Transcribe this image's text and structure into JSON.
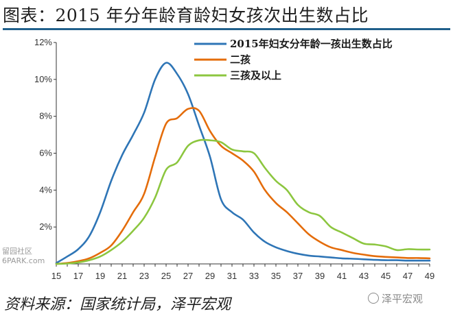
{
  "title": "图表：2015 年分年龄育龄妇女孩次出生数占比",
  "source": "资料来源：国家统计局，泽平宏观",
  "watermark_left": [
    "留园社区",
    "6PARK.com"
  ],
  "watermark_right": "泽平宏观",
  "chart_data": {
    "type": "line",
    "x": [
      15,
      16,
      17,
      18,
      19,
      20,
      21,
      22,
      23,
      24,
      25,
      26,
      27,
      28,
      29,
      30,
      31,
      32,
      33,
      34,
      35,
      36,
      37,
      38,
      39,
      40,
      41,
      42,
      43,
      44,
      45,
      46,
      47,
      48,
      49
    ],
    "x_tick_labels": [
      "15",
      "17",
      "19",
      "21",
      "23",
      "25",
      "27",
      "29",
      "31",
      "33",
      "35",
      "37",
      "39",
      "41",
      "43",
      "45",
      "47",
      "49"
    ],
    "ylim": [
      0,
      12
    ],
    "y_ticks": [
      2,
      4,
      6,
      8,
      10,
      12
    ],
    "y_tick_labels": [
      "2%",
      "4%",
      "6%",
      "8%",
      "10%",
      "12%"
    ],
    "legend_position": "top-right",
    "grid": false,
    "series": [
      {
        "name": "2015年妇女分年龄一孩出生数占比",
        "color": "#2e75b6",
        "values": [
          0.05,
          0.4,
          0.8,
          1.5,
          2.8,
          4.5,
          5.9,
          7.0,
          8.2,
          10.0,
          10.9,
          10.3,
          9.2,
          7.5,
          5.8,
          3.5,
          2.8,
          2.4,
          1.7,
          1.2,
          0.9,
          0.7,
          0.55,
          0.45,
          0.4,
          0.35,
          0.3,
          0.28,
          0.25,
          0.22,
          0.2,
          0.2,
          0.18,
          0.18,
          0.18
        ]
      },
      {
        "name": "二孩",
        "color": "#e46c0a",
        "values": [
          0.0,
          0.05,
          0.15,
          0.3,
          0.6,
          1.0,
          1.8,
          2.8,
          3.8,
          5.8,
          7.6,
          7.9,
          8.4,
          8.3,
          7.2,
          6.4,
          6.0,
          5.6,
          5.0,
          4.0,
          3.3,
          2.8,
          2.2,
          1.6,
          1.2,
          0.9,
          0.75,
          0.6,
          0.5,
          0.42,
          0.38,
          0.35,
          0.32,
          0.32,
          0.3
        ]
      },
      {
        "name": "三孩及以上",
        "color": "#8cc63f",
        "values": [
          0.0,
          0.02,
          0.08,
          0.2,
          0.4,
          0.75,
          1.2,
          1.8,
          2.5,
          3.6,
          5.1,
          5.5,
          6.4,
          6.7,
          6.7,
          6.6,
          6.2,
          6.1,
          6.0,
          5.2,
          4.5,
          4.0,
          3.2,
          2.8,
          2.6,
          2.0,
          1.7,
          1.4,
          1.1,
          1.05,
          0.95,
          0.75,
          0.8,
          0.78,
          0.78
        ]
      }
    ]
  }
}
